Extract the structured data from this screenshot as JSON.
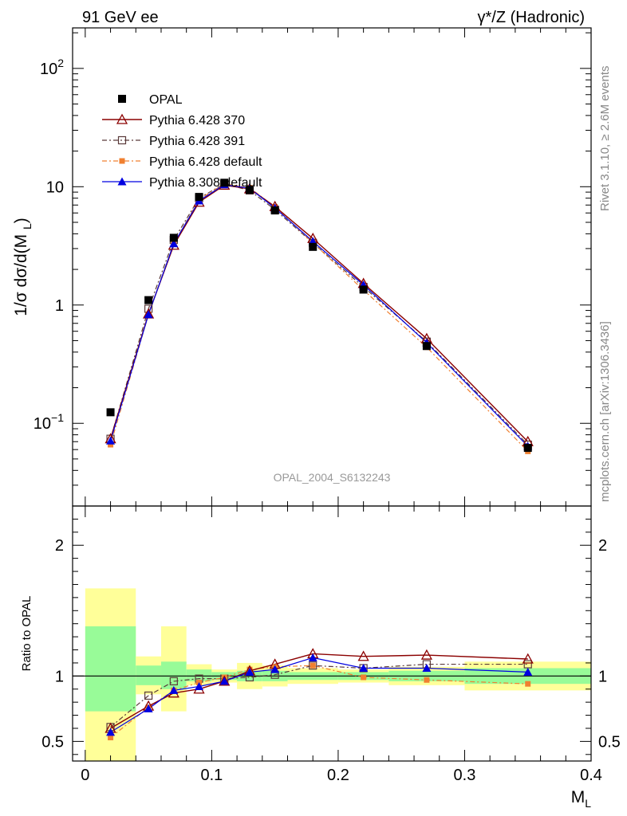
{
  "header": {
    "left_title": "91 GeV ee",
    "right_title_main": "γ*/Z (Hadronic)"
  },
  "side_labels": {
    "rivet": "Rivet 3.1.10, ≥ 2.6M events",
    "mcplots": "mcplots.cern.ch [arXiv:1306.3436]"
  },
  "analysis_label": "OPAL_2004_S6132243",
  "colors": {
    "opal": "#000000",
    "p370": "#8b0000",
    "p391": "#5a3a3a",
    "p6def": "#f08030",
    "p8def": "#0000e0",
    "band_inner": "#98fb98",
    "band_outer": "#ffff99"
  },
  "chart_data": [
    {
      "type": "line",
      "panel": "main",
      "ylabel": "1/σ dσ/d(M_L)",
      "yscale": "log",
      "ylim": [
        0.02,
        220
      ],
      "xlim": [
        -0.01,
        0.4
      ],
      "yticks": [
        {
          "value": 0.1,
          "base": "10",
          "exp": "−1"
        },
        {
          "value": 1,
          "base": "1",
          "exp": ""
        },
        {
          "value": 10,
          "base": "10",
          "exp": ""
        },
        {
          "value": 100,
          "base": "10",
          "exp": "2"
        }
      ],
      "legend_position": "top-left",
      "x": [
        0.02,
        0.05,
        0.07,
        0.09,
        0.11,
        0.13,
        0.15,
        0.18,
        0.22,
        0.27,
        0.35
      ],
      "series": [
        {
          "name": "OPAL",
          "key": "opal",
          "marker": "square-filled",
          "line": "none",
          "values": [
            0.124,
            1.1,
            3.7,
            8.2,
            10.8,
            9.4,
            6.3,
            3.1,
            1.35,
            0.45,
            0.062
          ]
        },
        {
          "name": "Pythia 6.428 370",
          "key": "p370",
          "marker": "triangle-open",
          "line": "solid",
          "values": [
            0.074,
            0.84,
            3.2,
            7.4,
            10.3,
            9.6,
            6.8,
            3.65,
            1.52,
            0.52,
            0.07
          ]
        },
        {
          "name": "Pythia 6.428 391",
          "key": "p391",
          "marker": "square-open",
          "line": "dashdot",
          "values": [
            0.074,
            0.93,
            3.55,
            8.0,
            10.6,
            9.3,
            6.4,
            3.35,
            1.42,
            0.49,
            0.066
          ]
        },
        {
          "name": "Pythia 6.428 default",
          "key": "p6def",
          "marker": "square-filled-small",
          "line": "dashdot",
          "values": [
            0.066,
            0.83,
            3.3,
            7.8,
            10.6,
            9.8,
            6.75,
            3.35,
            1.34,
            0.44,
            0.058
          ]
        },
        {
          "name": "Pythia 8.308 default",
          "key": "p8def",
          "marker": "triangle-filled",
          "line": "solid",
          "values": [
            0.071,
            0.83,
            3.3,
            7.6,
            10.4,
            9.7,
            6.6,
            3.45,
            1.48,
            0.48,
            0.064
          ]
        }
      ]
    },
    {
      "type": "line",
      "panel": "ratio",
      "ylabel": "Ratio to OPAL",
      "xlabel": "M_L",
      "ylim": [
        0.35,
        2.3
      ],
      "xlim": [
        -0.01,
        0.4
      ],
      "yticks": [
        0.5,
        1,
        2
      ],
      "ytick_labels": [
        "0.5",
        "1",
        "2"
      ],
      "xticks": [
        0,
        0.1,
        0.2,
        0.3,
        0.4
      ],
      "xtick_labels": [
        "0",
        "0.1",
        "0.2",
        "0.3",
        "0.4"
      ],
      "bands": [
        {
          "x0": 0.0,
          "x1": 0.04,
          "inner": [
            0.73,
            1.38
          ],
          "outer": [
            0.32,
            1.67
          ]
        },
        {
          "x0": 0.04,
          "x1": 0.06,
          "inner": [
            0.93,
            1.08
          ],
          "outer": [
            0.86,
            1.15
          ]
        },
        {
          "x0": 0.06,
          "x1": 0.08,
          "inner": [
            0.9,
            1.11
          ],
          "outer": [
            0.73,
            1.38
          ]
        },
        {
          "x0": 0.08,
          "x1": 0.1,
          "inner": [
            0.96,
            1.05
          ],
          "outer": [
            0.93,
            1.09
          ]
        },
        {
          "x0": 0.1,
          "x1": 0.12,
          "inner": [
            0.97,
            1.03
          ],
          "outer": [
            0.95,
            1.05
          ]
        },
        {
          "x0": 0.12,
          "x1": 0.14,
          "inner": [
            0.96,
            1.04
          ],
          "outer": [
            0.9,
            1.1
          ]
        },
        {
          "x0": 0.14,
          "x1": 0.16,
          "inner": [
            0.96,
            1.04
          ],
          "outer": [
            0.92,
            1.08
          ]
        },
        {
          "x0": 0.16,
          "x1": 0.2,
          "inner": [
            0.97,
            1.03
          ],
          "outer": [
            0.94,
            1.06
          ]
        },
        {
          "x0": 0.2,
          "x1": 0.24,
          "inner": [
            0.97,
            1.03
          ],
          "outer": [
            0.95,
            1.05
          ]
        },
        {
          "x0": 0.24,
          "x1": 0.3,
          "inner": [
            0.96,
            1.04
          ],
          "outer": [
            0.93,
            1.07
          ]
        },
        {
          "x0": 0.3,
          "x1": 0.4,
          "inner": [
            0.94,
            1.06
          ],
          "outer": [
            0.89,
            1.11
          ]
        }
      ],
      "x": [
        0.02,
        0.05,
        0.07,
        0.09,
        0.11,
        0.13,
        0.15,
        0.18,
        0.22,
        0.27,
        0.35
      ],
      "series": [
        {
          "name": "Pythia 6.428 370",
          "key": "p370",
          "marker": "triangle-open",
          "line": "solid",
          "values": [
            0.6,
            0.77,
            0.87,
            0.9,
            0.96,
            1.04,
            1.09,
            1.17,
            1.15,
            1.16,
            1.13
          ]
        },
        {
          "name": "Pythia 6.428 391",
          "key": "p391",
          "marker": "square-open",
          "line": "dashdot",
          "values": [
            0.61,
            0.85,
            0.96,
            0.98,
            0.98,
            0.99,
            1.01,
            1.08,
            1.06,
            1.09,
            1.09
          ]
        },
        {
          "name": "Pythia 6.428 default",
          "key": "p6def",
          "marker": "square-filled-small",
          "line": "dashdot",
          "values": [
            0.53,
            0.76,
            0.89,
            0.95,
            0.99,
            1.05,
            1.07,
            1.08,
            0.99,
            0.97,
            0.94
          ]
        },
        {
          "name": "Pythia 8.308 default",
          "key": "p8def",
          "marker": "triangle-filled",
          "line": "solid",
          "values": [
            0.57,
            0.75,
            0.89,
            0.92,
            0.96,
            1.03,
            1.05,
            1.14,
            1.06,
            1.06,
            1.03
          ]
        }
      ]
    }
  ]
}
